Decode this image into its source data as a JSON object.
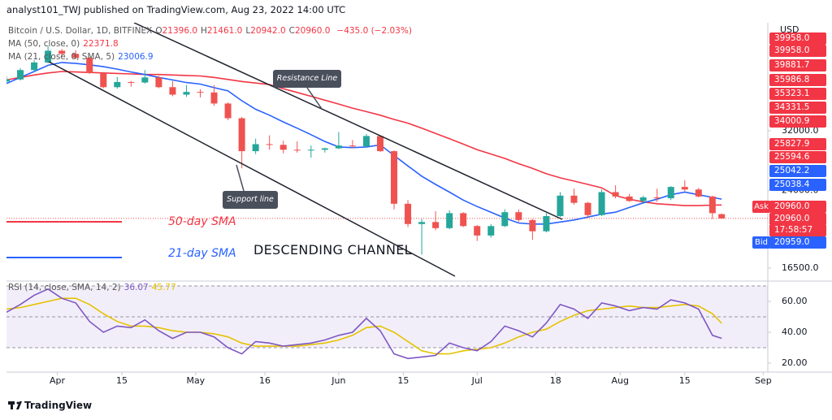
{
  "header": {
    "text": "analyst101_TWJ published on TradingView.com, Aug 23, 2022 14:00 UTC"
  },
  "legend": {
    "symbol": "Bitcoin / U.S. Dollar, 1D, BITFINEX",
    "ohlc": [
      {
        "label": "O",
        "value": "21396.0"
      },
      {
        "label": "H",
        "value": "21461.0"
      },
      {
        "label": "L",
        "value": "20942.0"
      },
      {
        "label": "C",
        "value": "20960.0"
      }
    ],
    "change": "−435.0 (−2.03%)",
    "ma50": {
      "label": "MA (50, close, 0)",
      "value": "22371.8"
    },
    "ma21": {
      "label": "MA (21, close, 0, SMA, 5)",
      "value": "23006.9"
    },
    "rsi": {
      "label": "RSI (14, close, SMA, 14, 2)",
      "value": "36.07",
      "ma_value": "45.77"
    }
  },
  "axis_unit": "USD",
  "price_labels": [
    {
      "text": "39958.0",
      "color": "#f23645"
    },
    {
      "text": "39958.0",
      "color": "#f23645"
    },
    {
      "text": "39881.7",
      "color": "#f23645"
    },
    {
      "text": "35986.8",
      "color": "#f23645"
    },
    {
      "text": "35323.1",
      "color": "#f23645"
    },
    {
      "text": "34331.5",
      "color": "#f23645"
    },
    {
      "text": "34000.9",
      "color": "#f23645"
    },
    {
      "text": "25827.9",
      "color": "#f23645"
    },
    {
      "text": "25594.6",
      "color": "#f23645"
    },
    {
      "text": "25042.2",
      "color": "#2962ff"
    },
    {
      "text": "25038.4",
      "color": "#2962ff"
    },
    {
      "text": "20960.0",
      "color": "#f23645"
    },
    {
      "text": "20960.0",
      "color": "#f23645"
    },
    {
      "text": "17:58:57",
      "color": "#f23645"
    },
    {
      "text": "20959.0",
      "color": "#2962ff"
    }
  ],
  "quote": {
    "ask": {
      "label": "Ask",
      "color": "#f23645"
    },
    "bid": {
      "label": "Bid",
      "color": "#2962ff"
    }
  },
  "annotations": {
    "resistance": "Resistance Line",
    "support": "Support line",
    "channel": "DESCENDING CHANNEL"
  },
  "footer": {
    "brand": "TradingView"
  },
  "chart_data": [
    {
      "type": "candlestick",
      "log_scale": true,
      "up_color": "#26a69a",
      "down_color": "#ef5350",
      "x": [
        0,
        3,
        6,
        9,
        12,
        15,
        18,
        21,
        24,
        27,
        30,
        33,
        36,
        39,
        42,
        45,
        48,
        51,
        54,
        57,
        60,
        63,
        66,
        69,
        72,
        75,
        78,
        81,
        84,
        87,
        90,
        93,
        96,
        99,
        102,
        105,
        108,
        111,
        114,
        117,
        120,
        123,
        126,
        129,
        132,
        135,
        138,
        141,
        144,
        147,
        150,
        153,
        155
      ],
      "open": [
        40600,
        41000,
        42900,
        44500,
        47100,
        46400,
        45500,
        42300,
        39500,
        40500,
        40400,
        41400,
        39500,
        38100,
        38600,
        38500,
        36500,
        34000,
        29000,
        30000,
        29900,
        29200,
        29100,
        29200,
        29400,
        29800,
        29700,
        31200,
        29000,
        22500,
        20400,
        20600,
        20000,
        21500,
        20200,
        19300,
        20200,
        21600,
        20800,
        19700,
        21200,
        23400,
        22600,
        21300,
        23800,
        23300,
        22800,
        23200,
        23100,
        24400,
        24100,
        23300,
        21396
      ],
      "high": [
        41600,
        43300,
        45000,
        48200,
        47500,
        47200,
        45700,
        42500,
        41500,
        40700,
        42900,
        41700,
        40700,
        39900,
        39100,
        39900,
        36700,
        34200,
        30800,
        31300,
        30500,
        30400,
        29800,
        29500,
        31800,
        30600,
        31500,
        31300,
        29100,
        22900,
        20900,
        21700,
        21800,
        21600,
        20300,
        20400,
        21900,
        21900,
        20900,
        21500,
        23800,
        24200,
        22700,
        24100,
        24600,
        23600,
        23400,
        24200,
        24500,
        25200,
        24300,
        23400,
        21461
      ],
      "low": [
        40400,
        40800,
        42600,
        44300,
        45800,
        45200,
        42100,
        39300,
        39200,
        39600,
        40200,
        39300,
        37800,
        37700,
        37600,
        36100,
        33700,
        26700,
        28600,
        29200,
        28700,
        28800,
        28100,
        28800,
        29300,
        29400,
        29500,
        28900,
        21900,
        20100,
        17600,
        19800,
        19900,
        20100,
        18800,
        19100,
        20100,
        20600,
        18900,
        19600,
        21100,
        22400,
        21000,
        21200,
        23100,
        22700,
        22500,
        22700,
        22900,
        23900,
        23200,
        20900,
        20942
      ],
      "close": [
        41000,
        42900,
        44500,
        47100,
        46400,
        45500,
        42300,
        39500,
        40500,
        40400,
        41400,
        39500,
        38100,
        38600,
        38500,
        36500,
        34000,
        29000,
        30000,
        29900,
        29200,
        29100,
        29200,
        29400,
        29800,
        29700,
        31200,
        29000,
        22500,
        20400,
        20600,
        20000,
        21500,
        20200,
        19300,
        20200,
        21600,
        20800,
        19700,
        21200,
        23400,
        22600,
        21300,
        23800,
        23300,
        22800,
        23200,
        23100,
        24400,
        24100,
        23300,
        21500,
        20960
      ],
      "series": [
        {
          "name": "50-day SMA",
          "color": "#f23645",
          "values": [
            40900,
            41400,
            41900,
            42300,
            42600,
            42500,
            42400,
            42300,
            42200,
            42100,
            42000,
            42000,
            41900,
            41800,
            41700,
            41400,
            41000,
            40600,
            40300,
            40000,
            39200,
            38500,
            37800,
            37100,
            36400,
            35700,
            35100,
            34500,
            33800,
            33200,
            32400,
            31600,
            30800,
            30000,
            29200,
            28600,
            28000,
            27300,
            26700,
            26000,
            25500,
            25100,
            24700,
            24300,
            23400,
            23000,
            22700,
            22500,
            22400,
            22300,
            22300,
            22350,
            22372
          ]
        },
        {
          "name": "21-day SMA",
          "color": "#2962ff",
          "values": [
            40200,
            41400,
            42600,
            43900,
            44500,
            44300,
            44000,
            43600,
            43100,
            42500,
            42000,
            41400,
            40900,
            40400,
            40100,
            39400,
            38800,
            37000,
            35500,
            34500,
            33400,
            32400,
            31400,
            30400,
            29600,
            29500,
            29600,
            29900,
            28400,
            27000,
            25700,
            24700,
            23800,
            22900,
            22200,
            21600,
            21000,
            20500,
            20400,
            20400,
            20600,
            20800,
            21100,
            21400,
            21600,
            22100,
            22600,
            23000,
            23500,
            23800,
            23500,
            23200,
            23007
          ]
        }
      ],
      "xlim": [
        0,
        165
      ],
      "ylim": [
        15550,
        52450
      ],
      "xticks": [
        {
          "value": 11,
          "label": "Apr"
        },
        {
          "value": 25,
          "label": "15"
        },
        {
          "value": 41,
          "label": "May"
        },
        {
          "value": 56,
          "label": "16"
        },
        {
          "value": 72,
          "label": "Jun"
        },
        {
          "value": 86,
          "label": "15"
        },
        {
          "value": 102,
          "label": "Jul"
        },
        {
          "value": 119,
          "label": "18"
        },
        {
          "value": 133,
          "label": "Aug"
        },
        {
          "value": 147,
          "label": "15"
        },
        {
          "value": 164,
          "label": "Sep"
        }
      ],
      "yticks": [
        {
          "value": 32000,
          "label": "32000.0"
        },
        {
          "value": 24000,
          "label": "24000.0"
        },
        {
          "value": 16500,
          "label": "16500.0"
        }
      ]
    },
    {
      "type": "line",
      "band_fill": "#7e57c2",
      "bands": [
        70,
        50,
        30
      ],
      "x": [
        0,
        3,
        6,
        9,
        12,
        15,
        18,
        21,
        24,
        27,
        30,
        33,
        36,
        39,
        42,
        45,
        48,
        51,
        54,
        57,
        60,
        63,
        66,
        69,
        72,
        75,
        78,
        81,
        84,
        87,
        90,
        93,
        96,
        99,
        102,
        105,
        108,
        111,
        114,
        117,
        120,
        123,
        126,
        129,
        132,
        135,
        138,
        141,
        144,
        147,
        150,
        153,
        155
      ],
      "series": [
        {
          "name": "RSI",
          "color": "#7e57c2",
          "values": [
            53,
            58,
            64,
            68,
            62,
            59,
            47,
            40,
            44,
            43,
            48,
            41,
            36,
            40,
            40,
            37,
            30,
            26,
            34,
            33,
            31,
            32,
            33,
            35,
            38,
            40,
            49,
            41,
            26,
            23,
            24,
            25,
            33,
            30,
            28,
            34,
            44,
            41,
            37,
            46,
            58,
            55,
            49,
            59,
            57,
            54,
            56,
            55,
            61,
            59,
            55,
            38,
            36.07
          ]
        },
        {
          "name": "RSI MA",
          "color": "#e6c200",
          "values": [
            55,
            56,
            58,
            60,
            62,
            62,
            58,
            52,
            47,
            44,
            44,
            43,
            41,
            40,
            40,
            39,
            37,
            33,
            31,
            31,
            31,
            31,
            32,
            33,
            35,
            38,
            43,
            44,
            40,
            34,
            28,
            26,
            26,
            28,
            29,
            30,
            33,
            37,
            40,
            42,
            47,
            51,
            54,
            55,
            56,
            57,
            56,
            56,
            57,
            58,
            57,
            52,
            45.77
          ]
        }
      ],
      "xlim": [
        0,
        165
      ],
      "ylim": [
        14.2,
        71.05
      ],
      "yticks": [
        {
          "value": 60,
          "label": "60.00"
        },
        {
          "value": 40,
          "label": "40.00"
        },
        {
          "value": 20,
          "label": "20.00"
        }
      ]
    }
  ]
}
